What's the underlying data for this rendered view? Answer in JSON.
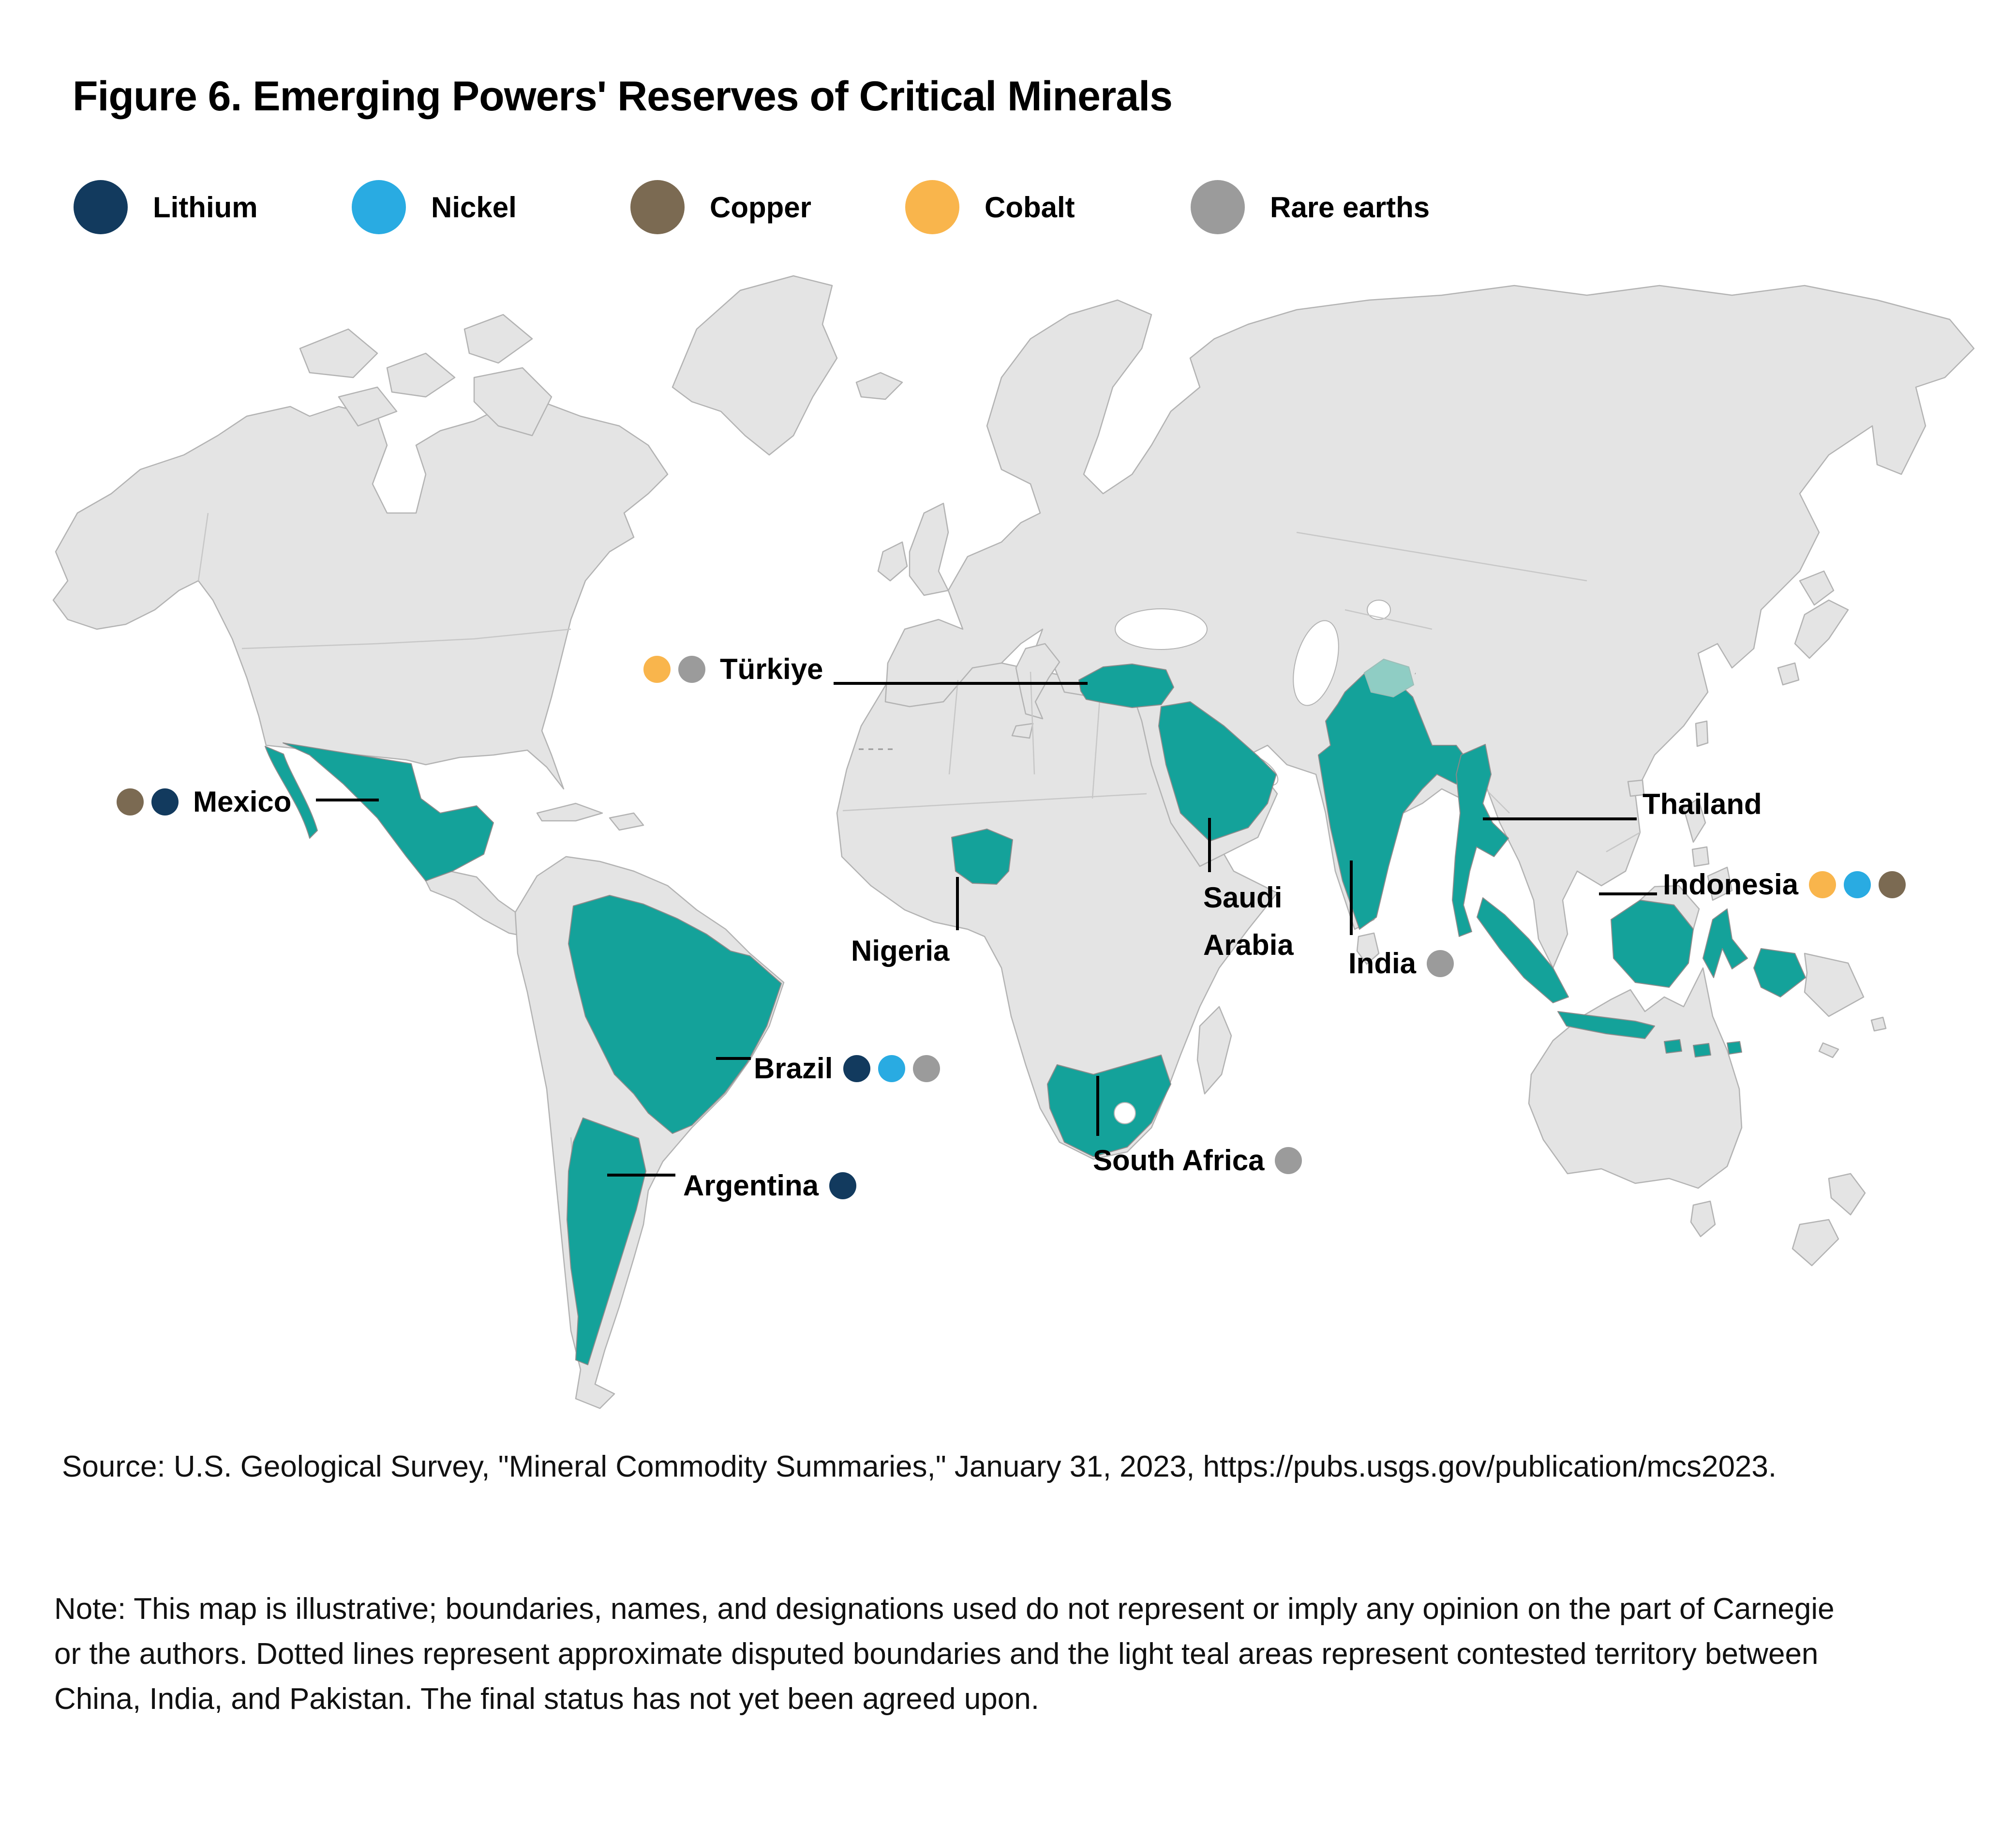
{
  "title": "Figure 6. Emerging Powers' Reserves of Critical Minerals",
  "minerals": {
    "lithium": {
      "label": "Lithium",
      "color": "#123A5E"
    },
    "nickel": {
      "label": "Nickel",
      "color": "#29ABE2"
    },
    "copper": {
      "label": "Copper",
      "color": "#7B6A52"
    },
    "cobalt": {
      "label": "Cobalt",
      "color": "#F9B54C"
    },
    "rare_earths": {
      "label": "Rare earths",
      "color": "#9B9B9B"
    }
  },
  "legend_order": [
    "lithium",
    "nickel",
    "copper",
    "cobalt",
    "rare_earths"
  ],
  "map": {
    "highlight_color": "#14A29A",
    "contested_color": "#8FCDC4",
    "land_color": "#E4E4E4",
    "countries": [
      {
        "id": "turkiye",
        "name": "Türkiye",
        "minerals": [
          "cobalt",
          "rare_earths"
        ],
        "dots_side": "left"
      },
      {
        "id": "mexico",
        "name": "Mexico",
        "minerals": [
          "copper",
          "lithium"
        ],
        "dots_side": "left"
      },
      {
        "id": "brazil",
        "name": "Brazil",
        "minerals": [
          "lithium",
          "nickel",
          "rare_earths"
        ],
        "dots_side": "right"
      },
      {
        "id": "argentina",
        "name": "Argentina",
        "minerals": [
          "lithium"
        ],
        "dots_side": "right"
      },
      {
        "id": "nigeria",
        "name": "Nigeria",
        "minerals": [],
        "dots_side": "none"
      },
      {
        "id": "saudi-arabia",
        "name": "Saudi Arabia",
        "minerals": [],
        "dots_side": "none",
        "line1": "Saudi",
        "line2": "Arabia"
      },
      {
        "id": "india",
        "name": "India",
        "minerals": [
          "rare_earths"
        ],
        "dots_side": "right"
      },
      {
        "id": "thailand",
        "name": "Thailand",
        "minerals": [],
        "dots_side": "none"
      },
      {
        "id": "indonesia",
        "name": "Indonesia",
        "minerals": [
          "cobalt",
          "nickel",
          "copper"
        ],
        "dots_side": "right"
      },
      {
        "id": "south-africa",
        "name": "South Africa",
        "minerals": [
          "rare_earths"
        ],
        "dots_side": "right"
      }
    ]
  },
  "source": "Source: U.S. Geological Survey, \"Mineral Commodity Summaries,\" January 31, 2023, https://pubs.usgs.gov/publication/mcs2023.",
  "note": "Note: This map is illustrative; boundaries, names, and designations used do not represent or imply any opinion on the part of Carnegie or the authors. Dotted lines represent approximate disputed boundaries and the light teal areas represent contested territory between China, India, and Pakistan. The final status has not yet been agreed upon."
}
